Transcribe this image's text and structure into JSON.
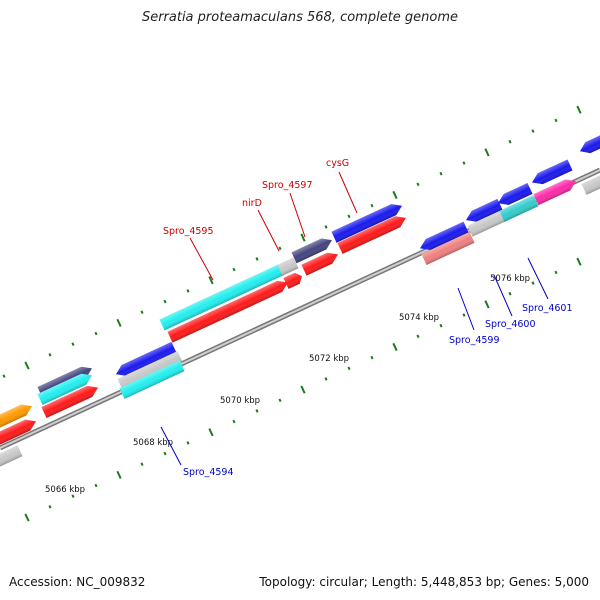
{
  "title": "Serratia proteamaculans 568, complete genome",
  "footer": {
    "accession": "Accession: NC_009832",
    "stats": "Topology: circular; Length: 5,448,853 bp; Genes: 5,000"
  },
  "ticks": [
    "5066 kbp",
    "5068 kbp",
    "5070 kbp",
    "5072 kbp",
    "5074 kbp",
    "5076 kbp"
  ],
  "labels": {
    "cysG": "cysG",
    "spro_4597": "Spro_4597",
    "nirD": "nirD",
    "spro_4595": "Spro_4595",
    "spro_4594": "Spro_4594",
    "spro_4599": "Spro_4599",
    "spro_4600": "Spro_4600",
    "spro_4601": "Spro_4601"
  },
  "colors": {
    "red": "#ff1a1a",
    "blue": "#1a1aee",
    "cyan": "#22eeee",
    "slate": "#45457e",
    "orange": "#ff9900",
    "pink": "#ff2aa8",
    "salmon": "#f08080",
    "grey": "#c8c8c8",
    "teal": "#33cccc",
    "label_red": "#cc0000",
    "label_blue": "#0000cc",
    "tick_green": "#1a7a1a",
    "backbone": "#888888"
  }
}
